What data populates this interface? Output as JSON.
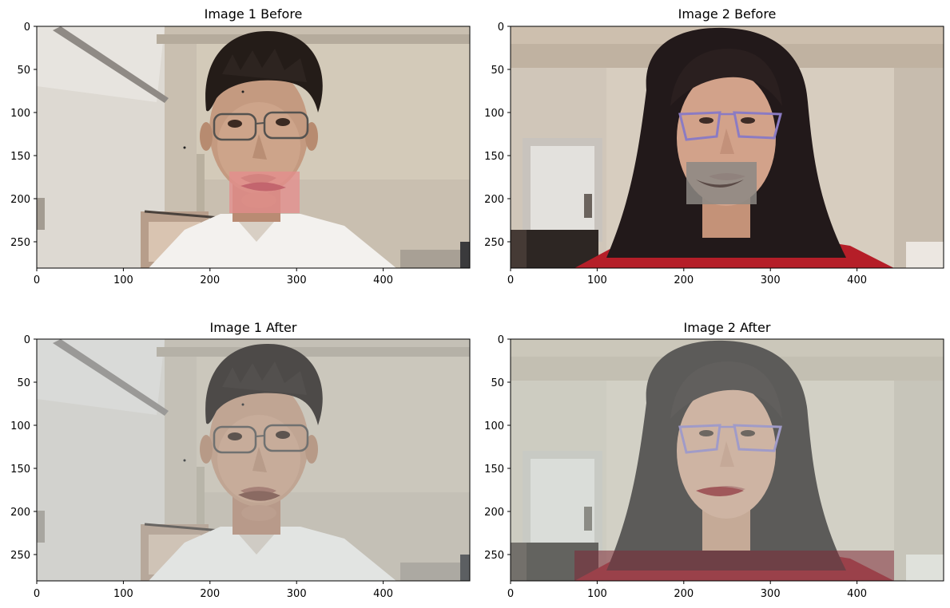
{
  "figure": {
    "panels": [
      {
        "title": "Image 1 Before",
        "subject": "young man with short black hair and glasses, white shirt",
        "mouth_patch": "pink-tinted",
        "xticks": [
          "0",
          "100",
          "200",
          "300",
          "400"
        ],
        "yticks": [
          "0",
          "50",
          "100",
          "150",
          "200",
          "250"
        ]
      },
      {
        "title": "Image 2 Before",
        "subject": "young woman with long dark hair and purple-framed glasses, red top",
        "mouth_patch": "grey-tinted",
        "xticks": [
          "0",
          "100",
          "200",
          "300",
          "400"
        ],
        "yticks": [
          "0",
          "50",
          "100",
          "150",
          "200",
          "250"
        ]
      },
      {
        "title": "Image 1 After",
        "subject": "young man with short black hair and glasses, white shirt, blended mouth",
        "mouth_patch": "",
        "xticks": [
          "0",
          "100",
          "200",
          "300",
          "400"
        ],
        "yticks": [
          "0",
          "50",
          "100",
          "150",
          "200",
          "250"
        ]
      },
      {
        "title": "Image 2 After",
        "subject": "young woman with long dark hair and purple-framed glasses, maroon top, blended mouth",
        "mouth_patch": "",
        "xticks": [
          "0",
          "100",
          "200",
          "300",
          "400"
        ],
        "yticks": [
          "0",
          "50",
          "100",
          "150",
          "200",
          "250"
        ]
      }
    ],
    "axis_range": {
      "x": [
        0,
        500
      ],
      "y": [
        0,
        280
      ]
    }
  }
}
